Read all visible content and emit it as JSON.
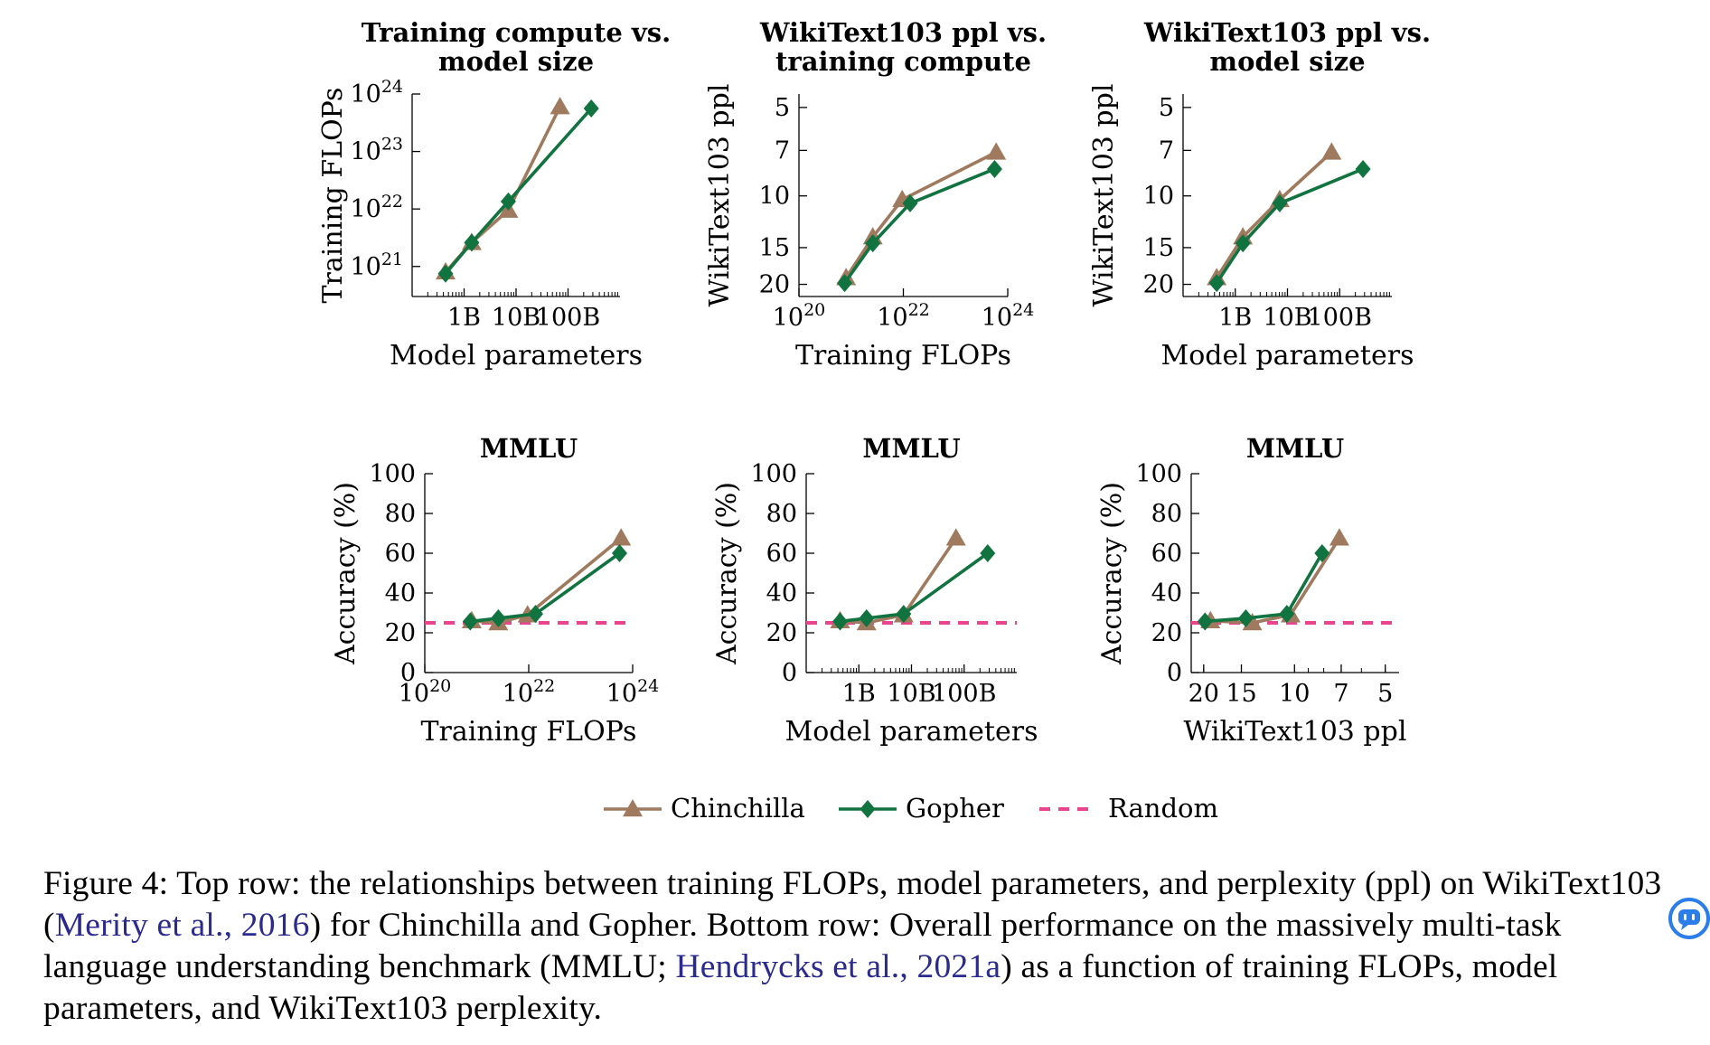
{
  "colors": {
    "chinchilla": "#a07a5e",
    "gopher": "#117340",
    "random": "#e9458f",
    "citation": "#2a2a8f"
  },
  "legend": {
    "placement": "bottom-center",
    "chinchilla": "Chinchilla",
    "gopher": "Gopher",
    "random": "Random"
  },
  "caption": {
    "p1": "Figure 4: Top row: the relationships between training FLOPs, model parameters, and perplexity (ppl) on WikiText103 (",
    "cite1": "Merity et al., 2016",
    "p2": ") for Chinchilla and Gopher. Bottom row: Overall performance on the massively multi-task language understanding benchmark (MMLU; ",
    "cite2": "Hendrycks et al., 2021a",
    "p3": ") as a function of training FLOPs, model parameters, and WikiText103 perplexity."
  },
  "chat_icon": "chat-bubble-icon",
  "chart_data": [
    {
      "type": "line",
      "title": [
        "Training compute vs.",
        "model size"
      ],
      "xlabel": "Model parameters",
      "ylabel": "Training FLOPs",
      "xscale": "log",
      "yscale": "log",
      "xlim": [
        100000000.0,
        1000000000000.0
      ],
      "ylim": [
        3e+20,
        1e+24
      ],
      "xticks": [
        {
          "v": 1000000000.0,
          "label": "1B"
        },
        {
          "v": 10000000000.0,
          "label": "10B"
        },
        {
          "v": 100000000000.0,
          "label": "100B"
        }
      ],
      "yticks": [
        {
          "v": 1e+21,
          "label": "10",
          "exp": "21"
        },
        {
          "v": 1e+22,
          "label": "10",
          "exp": "22"
        },
        {
          "v": 1e+23,
          "label": "10",
          "exp": "23"
        },
        {
          "v": 1e+24,
          "label": "10",
          "exp": "24"
        }
      ],
      "series": [
        {
          "name": "Chinchilla",
          "x": [
            440000000.0,
            1400000000.0,
            7100000000.0,
            70000000000.0
          ],
          "y": [
            8e+20,
            2.6e+21,
            9.5e+21,
            6e+23
          ]
        },
        {
          "name": "Gopher",
          "x": [
            440000000.0,
            1400000000.0,
            7100000000.0,
            280000000000.0
          ],
          "y": [
            7.5e+20,
            2.6e+21,
            1.35e+22,
            5.6e+23
          ]
        }
      ]
    },
    {
      "type": "line",
      "title": [
        "WikiText103 ppl vs.",
        "training compute"
      ],
      "xlabel": "Training FLOPs",
      "ylabel": "WikiText103 ppl",
      "xscale": "log",
      "yscale": "log-reversed",
      "xlim": [
        1e+20,
        1e+24
      ],
      "ylim": [
        22,
        4.5
      ],
      "xticks": [
        {
          "v": 1e+20,
          "label": "10",
          "exp": "20"
        },
        {
          "v": 1e+22,
          "label": "10",
          "exp": "22"
        },
        {
          "v": 1e+24,
          "label": "10",
          "exp": "24"
        }
      ],
      "yticks": [
        {
          "v": 5,
          "label": "5"
        },
        {
          "v": 7,
          "label": "7"
        },
        {
          "v": 10,
          "label": "10"
        },
        {
          "v": 15,
          "label": "15"
        },
        {
          "v": 20,
          "label": "20"
        }
      ],
      "series": [
        {
          "name": "Chinchilla",
          "x": [
            8e+20,
            2.6e+21,
            9.5e+21,
            6e+23
          ],
          "y": [
            19.0,
            13.8,
            10.3,
            7.1
          ]
        },
        {
          "name": "Gopher",
          "x": [
            7.5e+20,
            2.6e+21,
            1.35e+22,
            5.6e+23
          ],
          "y": [
            19.8,
            14.5,
            10.6,
            8.1
          ]
        }
      ]
    },
    {
      "type": "line",
      "title": [
        "WikiText103 ppl vs.",
        "model size"
      ],
      "xlabel": "Model parameters",
      "ylabel": "WikiText103 ppl",
      "xscale": "log",
      "yscale": "log-reversed",
      "xlim": [
        100000000.0,
        1000000000000.0
      ],
      "ylim": [
        22,
        4.5
      ],
      "xticks": [
        {
          "v": 1000000000.0,
          "label": "1B"
        },
        {
          "v": 10000000000.0,
          "label": "10B"
        },
        {
          "v": 100000000000.0,
          "label": "100B"
        }
      ],
      "yticks": [
        {
          "v": 5,
          "label": "5"
        },
        {
          "v": 7,
          "label": "7"
        },
        {
          "v": 10,
          "label": "10"
        },
        {
          "v": 15,
          "label": "15"
        },
        {
          "v": 20,
          "label": "20"
        }
      ],
      "series": [
        {
          "name": "Chinchilla",
          "x": [
            440000000.0,
            1400000000.0,
            7100000000.0,
            70000000000.0
          ],
          "y": [
            19.0,
            13.8,
            10.3,
            7.1
          ]
        },
        {
          "name": "Gopher",
          "x": [
            440000000.0,
            1400000000.0,
            7100000000.0,
            280000000000.0
          ],
          "y": [
            19.8,
            14.5,
            10.6,
            8.1
          ]
        }
      ]
    },
    {
      "type": "line",
      "title": [
        "MMLU"
      ],
      "xlabel": "Training FLOPs",
      "ylabel": "Accuracy (%)",
      "xscale": "log",
      "yscale": "linear",
      "xlim": [
        1e+20,
        1e+24
      ],
      "ylim": [
        0,
        100
      ],
      "xticks": [
        {
          "v": 1e+20,
          "label": "10",
          "exp": "20"
        },
        {
          "v": 1e+22,
          "label": "10",
          "exp": "22"
        },
        {
          "v": 1e+24,
          "label": "10",
          "exp": "24"
        }
      ],
      "yticks": [
        {
          "v": 0,
          "label": "0"
        },
        {
          "v": 20,
          "label": "20"
        },
        {
          "v": 40,
          "label": "40"
        },
        {
          "v": 60,
          "label": "60"
        },
        {
          "v": 80,
          "label": "80"
        },
        {
          "v": 100,
          "label": "100"
        }
      ],
      "random": 25,
      "series": [
        {
          "name": "Chinchilla",
          "x": [
            8e+20,
            2.6e+21,
            9.5e+21,
            6e+23
          ],
          "y": [
            26,
            25,
            29,
            67.6
          ]
        },
        {
          "name": "Gopher",
          "x": [
            7.5e+20,
            2.6e+21,
            1.35e+22,
            5.6e+23
          ],
          "y": [
            25.7,
            27.3,
            29.5,
            60.0
          ]
        }
      ]
    },
    {
      "type": "line",
      "title": [
        "MMLU"
      ],
      "xlabel": "Model parameters",
      "ylabel": "Accuracy (%)",
      "xscale": "log",
      "yscale": "linear",
      "xlim": [
        100000000.0,
        1000000000000.0
      ],
      "ylim": [
        0,
        100
      ],
      "xticks": [
        {
          "v": 1000000000.0,
          "label": "1B"
        },
        {
          "v": 10000000000.0,
          "label": "10B"
        },
        {
          "v": 100000000000.0,
          "label": "100B"
        }
      ],
      "yticks": [
        {
          "v": 0,
          "label": "0"
        },
        {
          "v": 20,
          "label": "20"
        },
        {
          "v": 40,
          "label": "40"
        },
        {
          "v": 60,
          "label": "60"
        },
        {
          "v": 80,
          "label": "80"
        },
        {
          "v": 100,
          "label": "100"
        }
      ],
      "random": 25,
      "series": [
        {
          "name": "Chinchilla",
          "x": [
            440000000.0,
            1400000000.0,
            7100000000.0,
            70000000000.0
          ],
          "y": [
            26,
            25,
            29,
            67.6
          ]
        },
        {
          "name": "Gopher",
          "x": [
            440000000.0,
            1400000000.0,
            7100000000.0,
            280000000000.0
          ],
          "y": [
            25.7,
            27.3,
            29.5,
            60.0
          ]
        }
      ]
    },
    {
      "type": "line",
      "title": [
        "MMLU"
      ],
      "xlabel": "WikiText103 ppl",
      "ylabel": "Accuracy (%)",
      "xscale": "log-reversed",
      "yscale": "linear",
      "xlim": [
        22,
        4.5
      ],
      "ylim": [
        0,
        100
      ],
      "xticks": [
        {
          "v": 20,
          "label": "20"
        },
        {
          "v": 15,
          "label": "15"
        },
        {
          "v": 10,
          "label": "10"
        },
        {
          "v": 7,
          "label": "7"
        },
        {
          "v": 5,
          "label": "5"
        }
      ],
      "yticks": [
        {
          "v": 0,
          "label": "0"
        },
        {
          "v": 20,
          "label": "20"
        },
        {
          "v": 40,
          "label": "40"
        },
        {
          "v": 60,
          "label": "60"
        },
        {
          "v": 80,
          "label": "80"
        },
        {
          "v": 100,
          "label": "100"
        }
      ],
      "random": 25,
      "series": [
        {
          "name": "Chinchilla",
          "x": [
            19.0,
            13.8,
            10.3,
            7.1
          ],
          "y": [
            26,
            25,
            29,
            67.6
          ]
        },
        {
          "name": "Gopher",
          "x": [
            19.8,
            14.5,
            10.6,
            8.1
          ],
          "y": [
            25.7,
            27.3,
            29.5,
            60.0
          ]
        }
      ]
    }
  ]
}
